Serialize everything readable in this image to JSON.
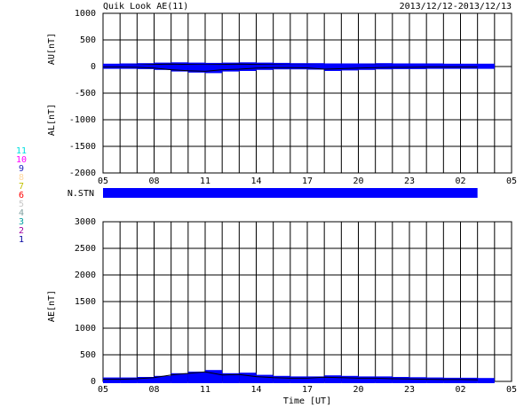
{
  "chart_data": [
    {
      "type": "line",
      "title": "Quik Look AE(11)",
      "subtitle": "2013/12/12-2013/12/13",
      "ylabels": [
        "AU[nT]",
        "AL[nT]"
      ],
      "xlim": [
        5,
        29
      ],
      "xticks": [
        {
          "value": 5,
          "label": "05"
        },
        {
          "value": 8,
          "label": "08"
        },
        11,
        14,
        17,
        20,
        23,
        {
          "value": 26,
          "label": "02"
        },
        {
          "value": 29,
          "label": "05"
        }
      ],
      "xgrid": [
        5,
        6,
        7,
        8,
        9,
        10,
        11,
        12,
        13,
        14,
        15,
        16,
        17,
        18,
        19,
        20,
        21,
        22,
        23,
        24,
        25,
        26,
        27,
        28,
        29
      ],
      "ylim": [
        -2000,
        1000
      ],
      "yticks": [
        -2000,
        -1500,
        -1000,
        -500,
        0,
        500,
        1000
      ],
      "x": [
        5,
        6,
        7,
        8,
        9,
        10,
        11,
        12,
        13,
        14,
        15,
        16,
        17,
        18,
        19,
        20,
        21,
        22,
        23,
        24,
        25,
        26,
        27
      ],
      "series": [
        {
          "name": "AU",
          "color": "#0000ff",
          "values": [
            20,
            25,
            30,
            40,
            45,
            40,
            35,
            40,
            45,
            40,
            35,
            30,
            30,
            25,
            25,
            25,
            30,
            25,
            25,
            25,
            20,
            20,
            20
          ]
        },
        {
          "name": "AL",
          "color": "#0000ff",
          "values": [
            -10,
            -10,
            -15,
            -30,
            -60,
            -80,
            -90,
            -60,
            -50,
            -30,
            -20,
            -20,
            -25,
            -50,
            -40,
            -30,
            -20,
            -15,
            -15,
            -10,
            -10,
            -10,
            -10
          ]
        }
      ],
      "nstn": {
        "label": "N.STN",
        "start": 5,
        "end": 27,
        "color": "#0000ff"
      },
      "legend": [
        {
          "label": "11",
          "color": "#00e0e0"
        },
        {
          "label": "10",
          "color": "#ff00ff"
        },
        {
          "label": "9",
          "color": "#2020c0"
        },
        {
          "label": "8",
          "color": "#ffd8a0"
        },
        {
          "label": "7",
          "color": "#c0c000"
        },
        {
          "label": "6",
          "color": "#ff0000"
        },
        {
          "label": "5",
          "color": "#c8c8c8"
        },
        {
          "label": "4",
          "color": "#80a0a0"
        },
        {
          "label": "3",
          "color": "#00a0a0"
        },
        {
          "label": "2",
          "color": "#a000a0"
        },
        {
          "label": "1",
          "color": "#0000a0"
        }
      ]
    },
    {
      "type": "line",
      "ylabels": [
        "AE[nT]"
      ],
      "xlabel": "Time [UT]",
      "xlim": [
        5,
        29
      ],
      "xticks": [
        {
          "value": 5,
          "label": "05"
        },
        {
          "value": 8,
          "label": "08"
        },
        11,
        14,
        17,
        20,
        23,
        {
          "value": 26,
          "label": "02"
        },
        {
          "value": 29,
          "label": "05"
        }
      ],
      "xgrid": [
        5,
        6,
        7,
        8,
        9,
        10,
        11,
        12,
        13,
        14,
        15,
        16,
        17,
        18,
        19,
        20,
        21,
        22,
        23,
        24,
        25,
        26,
        27,
        28,
        29
      ],
      "ylim": [
        0,
        3000
      ],
      "yticks": [
        0,
        500,
        1000,
        1500,
        2000,
        2500,
        3000
      ],
      "x": [
        5,
        6,
        7,
        8,
        9,
        10,
        11,
        12,
        13,
        14,
        15,
        16,
        17,
        18,
        19,
        20,
        21,
        22,
        23,
        24,
        25,
        26,
        27
      ],
      "series": [
        {
          "name": "AE",
          "color": "#0000ff",
          "values": [
            40,
            40,
            50,
            70,
            120,
            150,
            180,
            120,
            130,
            90,
            70,
            60,
            60,
            80,
            70,
            60,
            60,
            50,
            45,
            40,
            35,
            35,
            30
          ]
        }
      ]
    }
  ]
}
